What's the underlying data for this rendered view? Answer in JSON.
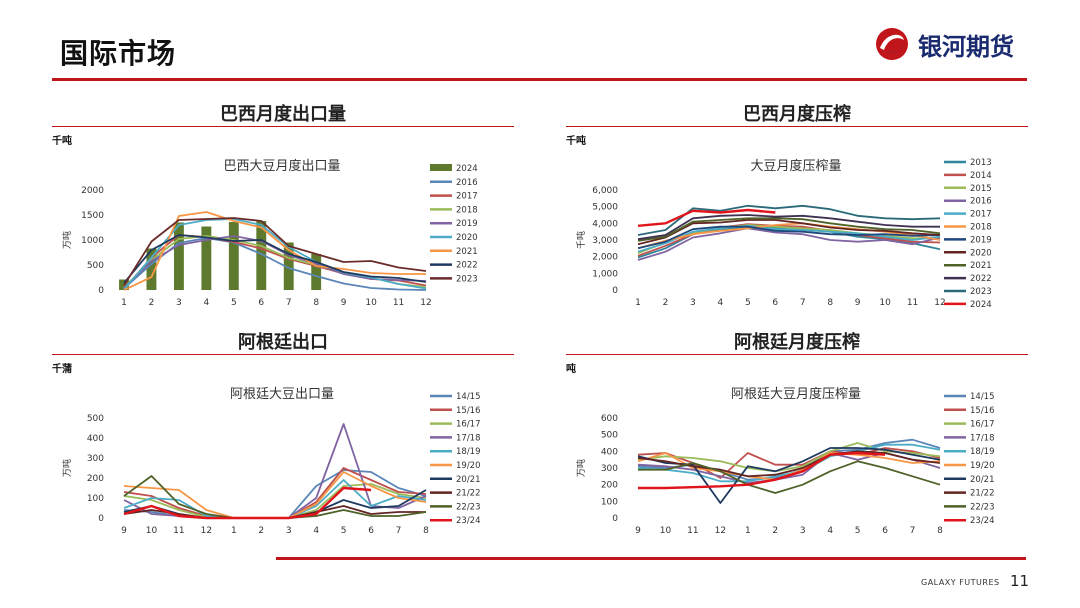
{
  "page": {
    "title": "国际市场",
    "brand_text": "银河期货",
    "footer_brand": "GALAXY FUTURES",
    "page_number": "11"
  },
  "colors": {
    "accent_red": "#c0161b",
    "brand_blue": "#1a2a6e"
  },
  "chart_data": [
    {
      "id": "brazil_exports",
      "panel_title": "巴西月度出口量",
      "unit": "千吨",
      "title": "巴西大豆月度出口量",
      "type": "bar+line",
      "ylabel": "万吨",
      "ylim": [
        0,
        2000
      ],
      "yticks": [
        "0",
        "500",
        "1000",
        "1500",
        "2000"
      ],
      "categories": [
        "1",
        "2",
        "3",
        "4",
        "5",
        "6",
        "7",
        "8",
        "9",
        "10",
        "11",
        "12"
      ],
      "legend_position": "right",
      "series": [
        {
          "name": "2024",
          "kind": "bar",
          "color": "#5e7a2e",
          "values": [
            210,
            830,
            1350,
            1270,
            1360,
            1380,
            950,
            720,
            null,
            null,
            null,
            null
          ]
        },
        {
          "name": "2016",
          "kind": "line",
          "color": "#5a86b8",
          "values": [
            30,
            520,
            940,
            1040,
            950,
            720,
            440,
            280,
            130,
            40,
            10,
            0
          ]
        },
        {
          "name": "2017",
          "kind": "line",
          "color": "#c0504d",
          "values": [
            20,
            650,
            1100,
            1060,
            960,
            830,
            620,
            480,
            330,
            220,
            190,
            90
          ]
        },
        {
          "name": "2018",
          "kind": "line",
          "color": "#9bbb59",
          "values": [
            50,
            600,
            1020,
            1080,
            1000,
            880,
            640,
            500,
            340,
            250,
            120,
            60
          ]
        },
        {
          "name": "2019",
          "kind": "line",
          "color": "#8064a2",
          "values": [
            40,
            580,
            900,
            1000,
            1080,
            980,
            700,
            520,
            320,
            220,
            200,
            180
          ]
        },
        {
          "name": "2020",
          "kind": "line",
          "color": "#4bacc6",
          "values": [
            10,
            650,
            1300,
            1400,
            1420,
            1300,
            860,
            560,
            350,
            250,
            120,
            30
          ]
        },
        {
          "name": "2021",
          "kind": "line",
          "color": "#f79646",
          "values": [
            0,
            260,
            1480,
            1560,
            1380,
            1250,
            800,
            480,
            420,
            340,
            320,
            320
          ]
        },
        {
          "name": "2022",
          "kind": "line",
          "color": "#1f3a5f",
          "values": [
            140,
            800,
            1100,
            1050,
            980,
            1000,
            720,
            560,
            360,
            270,
            240,
            160
          ]
        },
        {
          "name": "2023",
          "kind": "line",
          "color": "#6b2b2b",
          "values": [
            90,
            970,
            1400,
            1420,
            1440,
            1380,
            880,
            720,
            560,
            580,
            450,
            380
          ]
        }
      ]
    },
    {
      "id": "brazil_crush",
      "panel_title": "巴西月度压榨",
      "unit": "千吨",
      "title": "大豆月度压榨量",
      "type": "line",
      "ylabel": "千吨",
      "ylim": [
        0,
        6000
      ],
      "yticks": [
        "0",
        "1,000",
        "2,000",
        "3,000",
        "4,000",
        "5,000",
        "6,000"
      ],
      "categories": [
        "1",
        "2",
        "3",
        "4",
        "5",
        "6",
        "7",
        "8",
        "9",
        "10",
        "11",
        "12"
      ],
      "legend_position": "right",
      "series": [
        {
          "name": "2013",
          "color": "#31859c",
          "values": [
            1950,
            2500,
            3350,
            3650,
            3800,
            3750,
            3700,
            3500,
            3200,
            3050,
            2800,
            2450
          ]
        },
        {
          "name": "2014",
          "color": "#c0504d",
          "values": [
            2050,
            2650,
            3350,
            3750,
            3950,
            3850,
            3800,
            3550,
            3300,
            3100,
            2900,
            2850
          ]
        },
        {
          "name": "2015",
          "color": "#9bbb59",
          "values": [
            2200,
            2850,
            3450,
            3700,
            3900,
            3800,
            3700,
            3600,
            3400,
            3250,
            3100,
            3100
          ]
        },
        {
          "name": "2016",
          "color": "#8064a2",
          "values": [
            1800,
            2300,
            3150,
            3400,
            3700,
            3450,
            3350,
            3000,
            2900,
            3000,
            2750,
            3150
          ]
        },
        {
          "name": "2017",
          "color": "#4bacc6",
          "values": [
            2300,
            2800,
            3500,
            3700,
            3850,
            3650,
            3600,
            3500,
            3400,
            3200,
            3000,
            3200
          ]
        },
        {
          "name": "2018",
          "color": "#f79646",
          "values": [
            2500,
            2950,
            3350,
            3550,
            3700,
            3900,
            4000,
            3800,
            3650,
            3500,
            3300,
            3000
          ]
        },
        {
          "name": "2019",
          "color": "#1f497d",
          "values": [
            2500,
            2900,
            3650,
            3800,
            3800,
            3550,
            3500,
            3350,
            3300,
            3350,
            3250,
            3300
          ]
        },
        {
          "name": "2020",
          "color": "#632523",
          "values": [
            2750,
            3150,
            4000,
            4050,
            4200,
            4200,
            4000,
            3750,
            3600,
            3550,
            3400,
            3300
          ]
        },
        {
          "name": "2021",
          "color": "#4f6228",
          "values": [
            2950,
            3200,
            4100,
            4200,
            4300,
            4300,
            4250,
            4000,
            3800,
            3650,
            3600,
            3400
          ]
        },
        {
          "name": "2022",
          "color": "#3f3151",
          "values": [
            3050,
            3300,
            4300,
            4450,
            4500,
            4400,
            4450,
            4300,
            4100,
            3900,
            3800,
            3800
          ]
        },
        {
          "name": "2023",
          "color": "#2b6a7a",
          "values": [
            3300,
            3600,
            4900,
            4750,
            5050,
            4900,
            5050,
            4850,
            4450,
            4300,
            4250,
            4300
          ]
        },
        {
          "name": "2024",
          "color": "#e0151b",
          "values": [
            3850,
            4000,
            4750,
            4650,
            4800,
            4650,
            null,
            null,
            null,
            null,
            null,
            null
          ]
        }
      ]
    },
    {
      "id": "argentina_exports",
      "panel_title": "阿根廷出口",
      "unit": "千蒲",
      "title": "阿根廷大豆出口量",
      "type": "line",
      "ylabel": "万吨",
      "ylim": [
        0,
        500
      ],
      "yticks": [
        "0",
        "100",
        "200",
        "300",
        "400",
        "500"
      ],
      "categories": [
        "9",
        "10",
        "11",
        "12",
        "1",
        "2",
        "3",
        "4",
        "5",
        "6",
        "7",
        "8"
      ],
      "legend_position": "right",
      "series": [
        {
          "name": "14/15",
          "color": "#5a86b8",
          "values": [
            40,
            30,
            10,
            0,
            0,
            0,
            0,
            160,
            240,
            230,
            150,
            110
          ]
        },
        {
          "name": "15/16",
          "color": "#c0504d",
          "values": [
            130,
            110,
            50,
            10,
            0,
            0,
            0,
            80,
            250,
            190,
            130,
            120
          ]
        },
        {
          "name": "16/17",
          "color": "#9bbb59",
          "values": [
            110,
            90,
            40,
            5,
            0,
            0,
            0,
            40,
            160,
            170,
            120,
            100
          ]
        },
        {
          "name": "17/18",
          "color": "#8064a2",
          "values": [
            90,
            20,
            10,
            0,
            0,
            0,
            0,
            100,
            470,
            60,
            50,
            110
          ]
        },
        {
          "name": "18/19",
          "color": "#4bacc6",
          "values": [
            50,
            100,
            90,
            10,
            0,
            0,
            0,
            60,
            190,
            60,
            110,
            90
          ]
        },
        {
          "name": "19/20",
          "color": "#f79646",
          "values": [
            160,
            150,
            140,
            40,
            0,
            0,
            0,
            70,
            230,
            160,
            100,
            80
          ]
        },
        {
          "name": "20/21",
          "color": "#1f3a5f",
          "values": [
            30,
            60,
            20,
            0,
            0,
            0,
            0,
            30,
            90,
            50,
            60,
            140
          ]
        },
        {
          "name": "21/22",
          "color": "#632523",
          "values": [
            20,
            40,
            20,
            0,
            0,
            0,
            0,
            30,
            60,
            20,
            30,
            30
          ]
        },
        {
          "name": "22/23",
          "color": "#4f6228",
          "values": [
            110,
            210,
            70,
            20,
            0,
            0,
            0,
            10,
            40,
            10,
            10,
            30
          ]
        },
        {
          "name": "23/24",
          "color": "#e0151b",
          "values": [
            20,
            60,
            10,
            0,
            0,
            0,
            0,
            20,
            150,
            140,
            null,
            null
          ]
        }
      ]
    },
    {
      "id": "argentina_crush",
      "panel_title": "阿根廷月度压榨",
      "unit": "吨",
      "title": "阿根廷大豆月度压榨量",
      "type": "line",
      "ylabel": "万吨",
      "ylim": [
        0,
        600
      ],
      "yticks": [
        "0",
        "100",
        "200",
        "300",
        "400",
        "500",
        "600"
      ],
      "categories": [
        "9",
        "10",
        "11",
        "12",
        "1",
        "2",
        "3",
        "4",
        "5",
        "6",
        "7",
        "8"
      ],
      "legend_position": "right",
      "series": [
        {
          "name": "14/15",
          "color": "#5a86b8",
          "values": [
            310,
            300,
            320,
            280,
            230,
            240,
            290,
            400,
            410,
            450,
            470,
            420
          ]
        },
        {
          "name": "15/16",
          "color": "#c0504d",
          "values": [
            380,
            390,
            330,
            240,
            390,
            320,
            320,
            400,
            380,
            420,
            400,
            360
          ]
        },
        {
          "name": "16/17",
          "color": "#9bbb59",
          "values": [
            350,
            370,
            360,
            340,
            300,
            280,
            310,
            400,
            450,
            400,
            390,
            370
          ]
        },
        {
          "name": "17/18",
          "color": "#8064a2",
          "values": [
            320,
            310,
            290,
            250,
            210,
            230,
            260,
            390,
            350,
            390,
            350,
            300
          ]
        },
        {
          "name": "18/19",
          "color": "#4bacc6",
          "values": [
            300,
            290,
            270,
            220,
            220,
            250,
            280,
            370,
            400,
            440,
            440,
            410
          ]
        },
        {
          "name": "19/20",
          "color": "#f79646",
          "values": [
            340,
            390,
            300,
            280,
            250,
            230,
            290,
            390,
            380,
            360,
            330,
            340
          ]
        },
        {
          "name": "20/21",
          "color": "#1f3a5f",
          "values": [
            370,
            330,
            320,
            90,
            310,
            280,
            340,
            420,
            420,
            410,
            380,
            350
          ]
        },
        {
          "name": "21/22",
          "color": "#632523",
          "values": [
            360,
            340,
            310,
            290,
            250,
            260,
            300,
            380,
            400,
            390,
            350,
            330
          ]
        },
        {
          "name": "22/23",
          "color": "#4f6228",
          "values": [
            290,
            290,
            330,
            280,
            200,
            150,
            200,
            280,
            340,
            300,
            250,
            200
          ]
        },
        {
          "name": "23/24",
          "color": "#e0151b",
          "values": [
            180,
            180,
            185,
            190,
            200,
            230,
            280,
            380,
            390,
            380,
            null,
            null
          ]
        }
      ]
    }
  ]
}
